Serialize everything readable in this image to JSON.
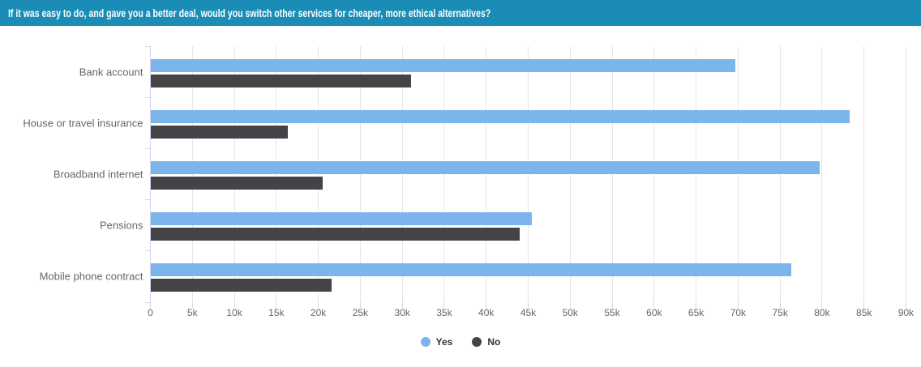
{
  "banner": {
    "text": "If it was easy to do, and gave you a better deal, would you switch other services for cheaper, more ethical alternatives?",
    "bg_color": "#1a8cb5",
    "text_color": "#ffffff"
  },
  "chart_data": {
    "type": "bar",
    "orientation": "horizontal",
    "title": "",
    "xlabel": "",
    "ylabel": "",
    "categories": [
      "Bank account",
      "House or travel insurance",
      "Broadband internet",
      "Pensions",
      "Mobile phone contract"
    ],
    "series": [
      {
        "name": "Yes",
        "color": "#7cb5ec",
        "values": [
          69600,
          83200,
          79700,
          45400,
          76300
        ]
      },
      {
        "name": "No",
        "color": "#434348",
        "values": [
          31000,
          16300,
          20500,
          43900,
          21500
        ]
      }
    ],
    "xlim": [
      0,
      90000
    ],
    "x_tick_step": 5000,
    "x_tick_labels": [
      "0",
      "5k",
      "10k",
      "15k",
      "20k",
      "25k",
      "30k",
      "35k",
      "40k",
      "45k",
      "50k",
      "55k",
      "60k",
      "65k",
      "70k",
      "75k",
      "80k",
      "85k",
      "90k"
    ],
    "grid": true,
    "legend_position": "bottom"
  },
  "colors": {
    "grid": "#e6e6e6",
    "axis_line": "#ccd6eb",
    "axis_label": "#666666",
    "category_label": "#666666",
    "legend_text": "#333333"
  }
}
